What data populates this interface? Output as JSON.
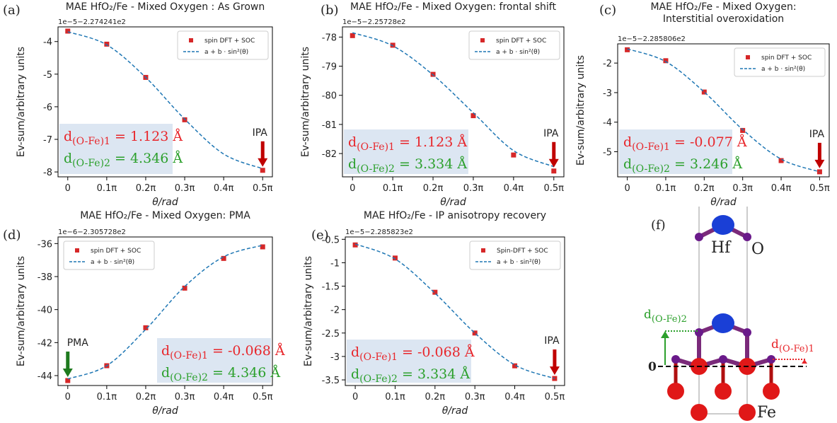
{
  "chart_data": [
    {
      "type": "scatter",
      "panel": "(a)",
      "title": [
        "MAE HfO₂/Fe - Mixed Oxygen : As Grown"
      ],
      "offset_label": "1e−5−2.274241e2",
      "xlabel": "θ/rad",
      "ylabel": "Ev-sum/arbitrary units",
      "legend": "upper right",
      "xlim": [
        -0.025,
        0.525
      ],
      "xticks": [
        0,
        {
          "value": 0.1,
          "label": "0.1π"
        },
        {
          "value": 0.2,
          "label": "0.2π"
        },
        {
          "value": 0.3,
          "label": "0.3π"
        },
        {
          "value": 0.4,
          "label": "0.4π"
        },
        {
          "value": 0.5,
          "label": "0.5π"
        }
      ],
      "ylim": [
        -8.15,
        -3.55
      ],
      "yticks": [
        -8,
        -7,
        -6,
        -5,
        -4
      ],
      "series": [
        {
          "name": "spin DFT + SOC",
          "color": "#d62728",
          "x": [
            0,
            0.1,
            0.2,
            0.3,
            0.5
          ],
          "values": [
            -3.68,
            -4.08,
            -5.1,
            -6.4,
            -7.95
          ]
        },
        {
          "name": "a + b · sin²(θ)",
          "color": "#1f77b4",
          "style": "dashed",
          "x": [
            0,
            0.1,
            0.2,
            0.3,
            0.4,
            0.5
          ],
          "values": [
            -3.7,
            -4.1,
            -5.1,
            -6.38,
            -7.45,
            -7.9
          ]
        }
      ],
      "arrow": {
        "label": "IPA",
        "color": "#c00000"
      },
      "d1": {
        "base": "d",
        "sub": "(O-Fe)1",
        "text": " = 1.123 Å",
        "color": "#e8262b"
      },
      "d2": {
        "base": "d",
        "sub": "(O-Fe)2",
        "text": " = 4.346 Å",
        "color": "#2ca02c"
      }
    },
    {
      "type": "scatter",
      "panel": "(b)",
      "title": [
        "MAE HfO₂/Fe - Mixed Oxygen: frontal shift"
      ],
      "offset_label": "1e−5−2.25728e2",
      "xlabel": "θ/rad",
      "ylabel": "Ev-sum/arbitrary units",
      "legend": "upper right",
      "xlim": [
        -0.025,
        0.525
      ],
      "xticks": [
        0,
        {
          "value": 0.1,
          "label": "0.1π"
        },
        {
          "value": 0.2,
          "label": "0.2π"
        },
        {
          "value": 0.3,
          "label": "0.3π"
        },
        {
          "value": 0.4,
          "label": "0.4π"
        },
        {
          "value": 0.5,
          "label": "0.5π"
        }
      ],
      "ylim": [
        -82.8,
        -77.65
      ],
      "yticks": [
        -82,
        -81,
        -80,
        -79,
        -78
      ],
      "series": [
        {
          "name": "spin DFT + SOC",
          "color": "#d62728",
          "x": [
            0,
            0.1,
            0.2,
            0.3,
            0.4,
            0.5
          ],
          "values": [
            -77.95,
            -78.28,
            -79.28,
            -80.7,
            -82.05,
            -82.6
          ]
        },
        {
          "name": "a + b · sin²(θ)",
          "color": "#1f77b4",
          "style": "dashed",
          "x": [
            0,
            0.1,
            0.2,
            0.3,
            0.4,
            0.5
          ],
          "values": [
            -77.85,
            -78.3,
            -79.3,
            -80.6,
            -81.9,
            -82.45
          ]
        }
      ],
      "arrow": {
        "label": "IPA",
        "color": "#c00000"
      },
      "d1": {
        "base": "d",
        "sub": "(O-Fe)1",
        "text": " = 1.123 Å",
        "color": "#e8262b"
      },
      "d2": {
        "base": "d",
        "sub": "(O-Fe)2",
        "text": " =  3.334 Å",
        "color": "#2ca02c"
      }
    },
    {
      "type": "scatter",
      "panel": "(c)",
      "title": [
        "MAE HfO₂/Fe - Mixed Oxygen:",
        "Interstitial overoxidation"
      ],
      "offset_label": "1e−5−2.285806e2",
      "xlabel": "θ/rad",
      "ylabel": "Ev-sum/arbitrary units",
      "legend": "upper right",
      "xlim": [
        -0.025,
        0.525
      ],
      "xticks": [
        0,
        {
          "value": 0.1,
          "label": "0.1π"
        },
        {
          "value": 0.2,
          "label": "0.2π"
        },
        {
          "value": 0.3,
          "label": "0.3π"
        },
        {
          "value": 0.4,
          "label": "0.4π"
        },
        {
          "value": 0.5,
          "label": "0.5π"
        }
      ],
      "ylim": [
        -5.85,
        -1.35
      ],
      "yticks": [
        -5,
        -4,
        -3,
        -2
      ],
      "series": [
        {
          "name": "spin DFT + SOC",
          "color": "#d62728",
          "x": [
            0,
            0.1,
            0.2,
            0.3,
            0.4,
            0.5
          ],
          "values": [
            -1.55,
            -1.92,
            -2.98,
            -4.28,
            -5.3,
            -5.68
          ]
        },
        {
          "name": "a + b · sin²(θ)",
          "color": "#1f77b4",
          "style": "dashed",
          "x": [
            0,
            0.1,
            0.2,
            0.3,
            0.4,
            0.5
          ],
          "values": [
            -1.52,
            -1.95,
            -2.98,
            -4.25,
            -5.25,
            -5.68
          ]
        }
      ],
      "arrow": {
        "label": "IPA",
        "color": "#c00000"
      },
      "d1": {
        "base": "d",
        "sub": "(O-Fe)1",
        "text": " = -0.077 Å",
        "color": "#e8262b"
      },
      "d2": {
        "base": "d",
        "sub": "(O-Fe)2",
        "text": " = 3.246 Å",
        "color": "#2ca02c"
      }
    },
    {
      "type": "scatter",
      "panel": "(d)",
      "title": [
        "MAE HfO₂/Fe - Mixed Oxygen: PMA"
      ],
      "offset_label": "1e−6−2.305728e2",
      "xlabel": "θ/rad",
      "ylabel": "Ev-sum/arbitrary units",
      "legend": "upper left",
      "xlim": [
        -0.025,
        0.525
      ],
      "xticks": [
        0,
        {
          "value": 0.1,
          "label": "0.1π"
        },
        {
          "value": 0.2,
          "label": "0.2π"
        },
        {
          "value": 0.3,
          "label": "0.3π"
        },
        {
          "value": 0.4,
          "label": "0.4π"
        },
        {
          "value": 0.5,
          "label": "0.5π"
        }
      ],
      "ylim": [
        -44.6,
        -35.6
      ],
      "yticks": [
        -44,
        -42,
        -40,
        -38,
        -36
      ],
      "series": [
        {
          "name": "spin DFT + SOC",
          "color": "#d62728",
          "x": [
            0,
            0.1,
            0.2,
            0.3,
            0.4,
            0.5
          ],
          "values": [
            -44.3,
            -43.4,
            -41.1,
            -38.7,
            -36.9,
            -36.2
          ]
        },
        {
          "name": "a + b · sin²(θ)",
          "color": "#1f77b4",
          "style": "dashed",
          "x": [
            0,
            0.1,
            0.2,
            0.3,
            0.4,
            0.5
          ],
          "values": [
            -44.2,
            -43.4,
            -41.2,
            -38.6,
            -36.8,
            -36.1
          ]
        }
      ],
      "arrow": {
        "label": "PMA",
        "color": "#1e7a1e"
      },
      "d1": {
        "base": "d",
        "sub": "(O-Fe)1",
        "text": " = -0.068 Å",
        "color": "#e8262b"
      },
      "d2": {
        "base": "d",
        "sub": "(O-Fe)2",
        "text": " = 4.346 Å",
        "color": "#2ca02c"
      }
    },
    {
      "type": "scatter",
      "panel": "(e)",
      "title": [
        "MAE HfO₂/Fe - IP anisotropy recovery"
      ],
      "offset_label": "1e−5−2.285823e2",
      "xlabel": "θ/rad",
      "ylabel": "Ev-sum/arbitrary units",
      "legend": "upper right",
      "xlim": [
        -0.025,
        0.525
      ],
      "xticks": [
        0,
        {
          "value": 0.1,
          "label": "0.1π"
        },
        {
          "value": 0.2,
          "label": "0.2π"
        },
        {
          "value": 0.3,
          "label": "0.3π"
        },
        {
          "value": 0.4,
          "label": "0.4π"
        },
        {
          "value": 0.5,
          "label": "0.5π"
        }
      ],
      "ylim": [
        -3.62,
        -0.45
      ],
      "yticks": [
        -3.5,
        -3.0,
        -2.5,
        -2.0,
        -1.5,
        -1.0,
        -0.5
      ],
      "series": [
        {
          "name": "Spin-DFT + SOC",
          "color": "#d62728",
          "x": [
            0,
            0.1,
            0.2,
            0.3,
            0.4,
            0.5
          ],
          "values": [
            -0.62,
            -0.9,
            -1.63,
            -2.5,
            -3.2,
            -3.47
          ]
        },
        {
          "name": "a + b · sin²(θ)",
          "color": "#1f77b4",
          "style": "dashed",
          "x": [
            0,
            0.1,
            0.2,
            0.3,
            0.4,
            0.5
          ],
          "values": [
            -0.6,
            -0.92,
            -1.65,
            -2.5,
            -3.18,
            -3.47
          ]
        }
      ],
      "arrow": {
        "label": "IPA",
        "color": "#c00000"
      },
      "d1": {
        "base": "d",
        "sub": "(O-Fe)1",
        "text": " = -0.068 Å",
        "color": "#e8262b"
      },
      "d2": {
        "base": "d",
        "sub": "(O-Fe)2",
        "text": " = 3.334 Å",
        "color": "#2ca02c"
      }
    }
  ],
  "diagram": {
    "panel": "(f)",
    "hf": "Hf",
    "o": "O",
    "fe": "Fe",
    "zero": "0",
    "d2": {
      "base": "d",
      "sub": "(O-Fe)2"
    },
    "d1": {
      "base": "d",
      "sub": "(O-Fe)1"
    }
  }
}
